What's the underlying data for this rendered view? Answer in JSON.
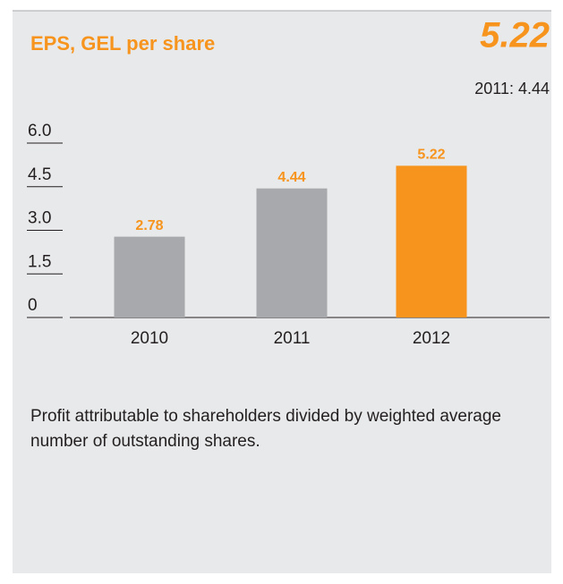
{
  "chart_data": {
    "type": "bar",
    "title": "EPS, GEL per share",
    "headline": "5.22",
    "comparison": "2011: 4.44",
    "categories": [
      "2010",
      "2011",
      "2012"
    ],
    "values": [
      2.78,
      4.44,
      5.22
    ],
    "colors": [
      "#a7a9ac",
      "#a7a9ac",
      "#f7941d"
    ],
    "ylim": [
      0,
      6
    ],
    "yticks": [
      0,
      1.5,
      {
        "value": 3,
        "label": "3.0"
      },
      4.5,
      {
        "value": 6,
        "label": "6.0"
      }
    ],
    "footnote": "Profit attributable to shareholders divided by weighted average number of outstanding shares."
  }
}
